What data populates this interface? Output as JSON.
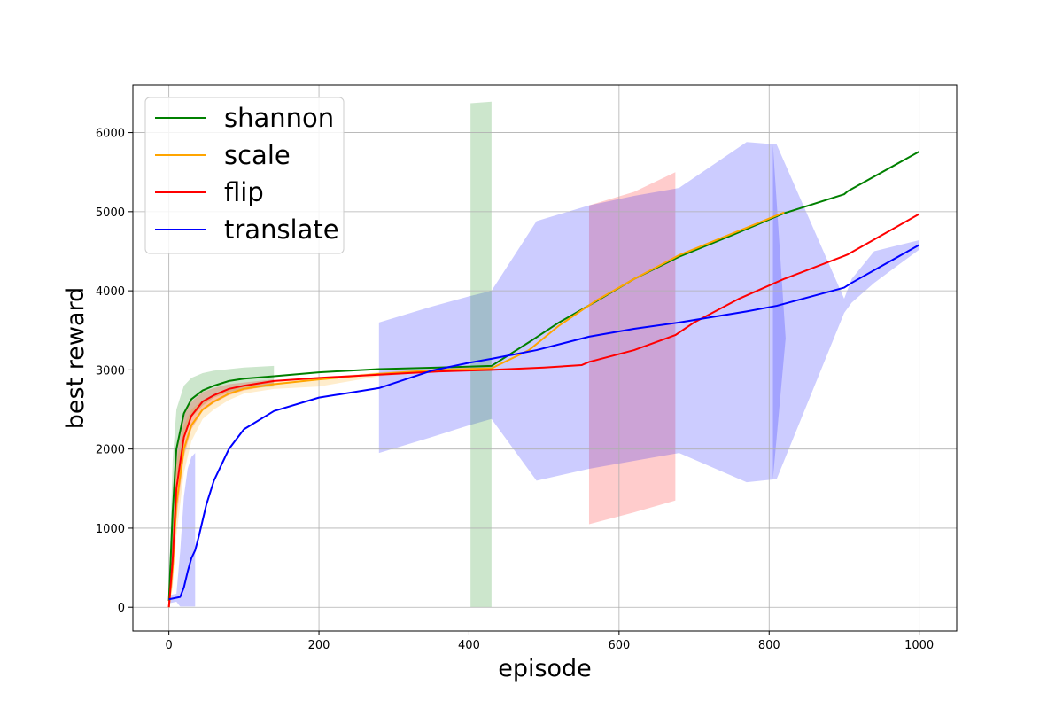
{
  "chart_data": {
    "type": "line",
    "xlabel": "episode",
    "ylabel": "best reward",
    "xlim": [
      -48,
      1050
    ],
    "ylim": [
      -300,
      6600
    ],
    "xticks": [
      0,
      200,
      400,
      600,
      800,
      1000
    ],
    "yticks": [
      0,
      1000,
      2000,
      3000,
      4000,
      5000,
      6000
    ],
    "grid": true,
    "legend_position": "top-left",
    "series": [
      {
        "name": "shannon",
        "color": "#008000",
        "x": [
          0,
          5,
          10,
          20,
          30,
          45,
          60,
          80,
          100,
          140,
          200,
          280,
          360,
          430,
          480,
          520,
          570,
          620,
          680,
          750,
          820,
          900,
          905,
          1000
        ],
        "y": [
          80,
          1200,
          2000,
          2450,
          2630,
          2740,
          2800,
          2860,
          2890,
          2920,
          2970,
          3010,
          3030,
          3050,
          3350,
          3600,
          3870,
          4150,
          4430,
          4700,
          4980,
          5220,
          5260,
          5760
        ],
        "band_upper": [
          300,
          1850,
          2500,
          2800,
          2900,
          2960,
          2990,
          3010,
          3030,
          3050,
          null,
          null,
          null,
          null,
          null,
          null,
          null,
          null,
          null,
          null,
          null,
          null,
          null,
          null
        ],
        "band_lower": [
          0,
          700,
          1600,
          2150,
          2400,
          2550,
          2650,
          2720,
          2760,
          2790,
          null,
          null,
          null,
          null,
          null,
          null,
          null,
          null,
          null,
          null,
          null,
          null,
          null,
          null
        ]
      },
      {
        "name": "scale",
        "color": "#ffa500",
        "x": [
          0,
          5,
          10,
          20,
          30,
          45,
          60,
          80,
          100,
          140,
          200,
          280,
          360,
          430,
          480,
          520,
          570,
          620,
          680,
          750,
          820
        ],
        "y": [
          0,
          500,
          1300,
          2000,
          2300,
          2500,
          2600,
          2700,
          2760,
          2820,
          2880,
          2950,
          3000,
          3020,
          3250,
          3560,
          3880,
          4150,
          4450,
          4720,
          4990
        ],
        "band_upper": [
          120,
          1000,
          1800,
          2300,
          2500,
          2620,
          2680,
          2750,
          2790,
          2860,
          2900,
          2970,
          3020,
          3060,
          null,
          null,
          null,
          null,
          null,
          null,
          null
        ],
        "band_lower": [
          0,
          250,
          900,
          1700,
          2100,
          2380,
          2500,
          2620,
          2700,
          2760,
          2790,
          2920,
          2980,
          2990,
          null,
          null,
          null,
          null,
          null,
          null,
          null
        ]
      },
      {
        "name": "flip",
        "color": "#ff0000",
        "x": [
          0,
          5,
          10,
          20,
          30,
          45,
          60,
          80,
          100,
          140,
          200,
          280,
          360,
          430,
          500,
          550,
          560,
          620,
          675,
          700,
          760,
          820,
          900,
          905,
          1000
        ],
        "y": [
          0,
          600,
          1500,
          2150,
          2420,
          2600,
          2680,
          2760,
          2800,
          2860,
          2900,
          2940,
          2980,
          3000,
          3030,
          3060,
          3100,
          3250,
          3440,
          3600,
          3900,
          4150,
          4440,
          4460,
          4970
        ],
        "band_upper": [
          150,
          1100,
          2000,
          2450,
          2600,
          2720,
          2770,
          2820,
          2840,
          2880,
          null,
          null,
          null,
          null,
          null,
          null,
          5080,
          5250,
          5500,
          null,
          null,
          null,
          null,
          null,
          null
        ],
        "band_lower": [
          0,
          300,
          1100,
          1900,
          2250,
          2480,
          2580,
          2680,
          2740,
          2810,
          null,
          null,
          null,
          null,
          null,
          null,
          1050,
          1200,
          1350,
          null,
          null,
          null,
          null,
          null,
          null
        ]
      },
      {
        "name": "translate",
        "color": "#0000ff",
        "x": [
          0,
          5,
          10,
          15,
          20,
          25,
          30,
          35,
          40,
          50,
          60,
          80,
          100,
          140,
          200,
          280,
          350,
          400,
          430,
          490,
          560,
          620,
          680,
          770,
          810,
          900,
          910,
          940,
          1000
        ],
        "y": [
          100,
          110,
          120,
          130,
          250,
          450,
          620,
          720,
          900,
          1300,
          1600,
          2000,
          2250,
          2480,
          2650,
          2770,
          2990,
          3090,
          3140,
          3250,
          3420,
          3520,
          3600,
          3740,
          3810,
          4040,
          4100,
          4260,
          4580
        ],
        "band_upper": [
          150,
          160,
          170,
          700,
          1400,
          1750,
          1900,
          1950,
          null,
          null,
          null,
          null,
          null,
          null,
          null,
          3600,
          3800,
          3930,
          4000,
          4880,
          5080,
          5200,
          5300,
          5880,
          5850,
          3900,
          4150,
          4500,
          4640
        ],
        "band_lower": [
          50,
          60,
          70,
          10,
          10,
          10,
          10,
          10,
          null,
          null,
          null,
          null,
          null,
          null,
          null,
          1950,
          2150,
          2300,
          2380,
          1600,
          1750,
          1850,
          1950,
          1580,
          1620,
          3720,
          3850,
          4100,
          4520
        ]
      }
    ],
    "extra_bands": [
      {
        "series": "shannon",
        "x": [
          402,
          430
        ],
        "upper": [
          6370,
          6390
        ],
        "lower": [
          0,
          0
        ]
      },
      {
        "series": "translate",
        "x": [
          805,
          822
        ],
        "upper": [
          5850,
          3400
        ],
        "lower": [
          1620,
          3400
        ]
      }
    ]
  }
}
